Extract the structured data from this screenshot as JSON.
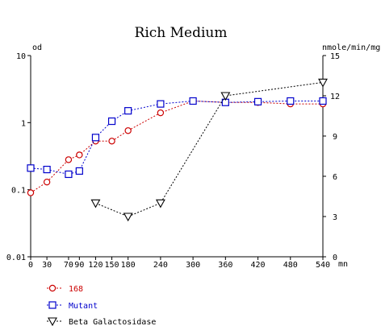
{
  "chart_data": {
    "type": "line",
    "title": "Rich Medium",
    "y_left_label": "od",
    "y_right_label": "nmole/min/mg",
    "x_unit": "mn",
    "x_ticks": [
      0,
      30,
      70,
      90,
      120,
      150,
      180,
      240,
      300,
      360,
      420,
      480,
      540
    ],
    "x_range": [
      0,
      540
    ],
    "y_left_scale": "log",
    "y_left_range": [
      0.01,
      10
    ],
    "y_left_ticks": [
      "10",
      "1",
      "0.1",
      "0.01"
    ],
    "y_left_tick_values": [
      10,
      1,
      0.1,
      0.01
    ],
    "y_right_range": [
      0,
      15
    ],
    "y_right_ticks": [
      0,
      3,
      6,
      9,
      12,
      15
    ],
    "grid": false,
    "legend_position": "bottom-left",
    "series": [
      {
        "name": "168",
        "axis": "left",
        "color": "#cc0000",
        "marker": "circle",
        "x": [
          0,
          30,
          70,
          90,
          120,
          150,
          180,
          240,
          300,
          360,
          420,
          480,
          540
        ],
        "y": [
          0.09,
          0.13,
          0.28,
          0.33,
          0.53,
          0.53,
          0.76,
          1.4,
          2.1,
          2.0,
          2.0,
          1.9,
          1.9
        ]
      },
      {
        "name": "Mutant",
        "axis": "left",
        "color": "#0000cc",
        "marker": "square",
        "x": [
          0,
          30,
          70,
          90,
          120,
          150,
          180,
          240,
          300,
          360,
          420,
          480,
          540
        ],
        "y": [
          0.21,
          0.2,
          0.17,
          0.19,
          0.6,
          1.05,
          1.5,
          1.9,
          2.1,
          2.0,
          2.05,
          2.1,
          2.1
        ]
      },
      {
        "name": "Beta Galactosidase",
        "axis": "right",
        "color": "#000000",
        "marker": "triangle-down",
        "x": [
          120,
          180,
          240,
          360,
          540
        ],
        "y": [
          4.0,
          3.0,
          4.0,
          12.0,
          13.0
        ]
      }
    ]
  }
}
